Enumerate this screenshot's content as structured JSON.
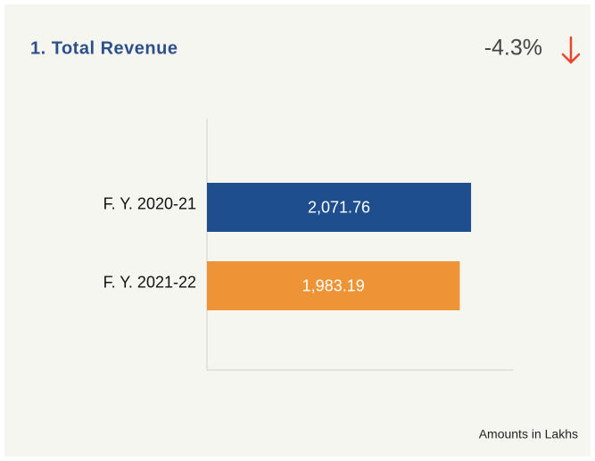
{
  "chart_data": {
    "type": "hbar",
    "title": "1. Total Revenue",
    "change": "-4.3%",
    "footnote": "Amounts in Lakhs",
    "categories": [
      "F. Y. 2020-21",
      "F. Y. 2021-22"
    ],
    "values": [
      2071.76,
      1983.19
    ],
    "value_labels": [
      "2,071.76",
      "1,983.19"
    ],
    "colors": [
      "#1f4e8e",
      "#ee9437"
    ],
    "xlim": [
      0,
      2400
    ]
  }
}
